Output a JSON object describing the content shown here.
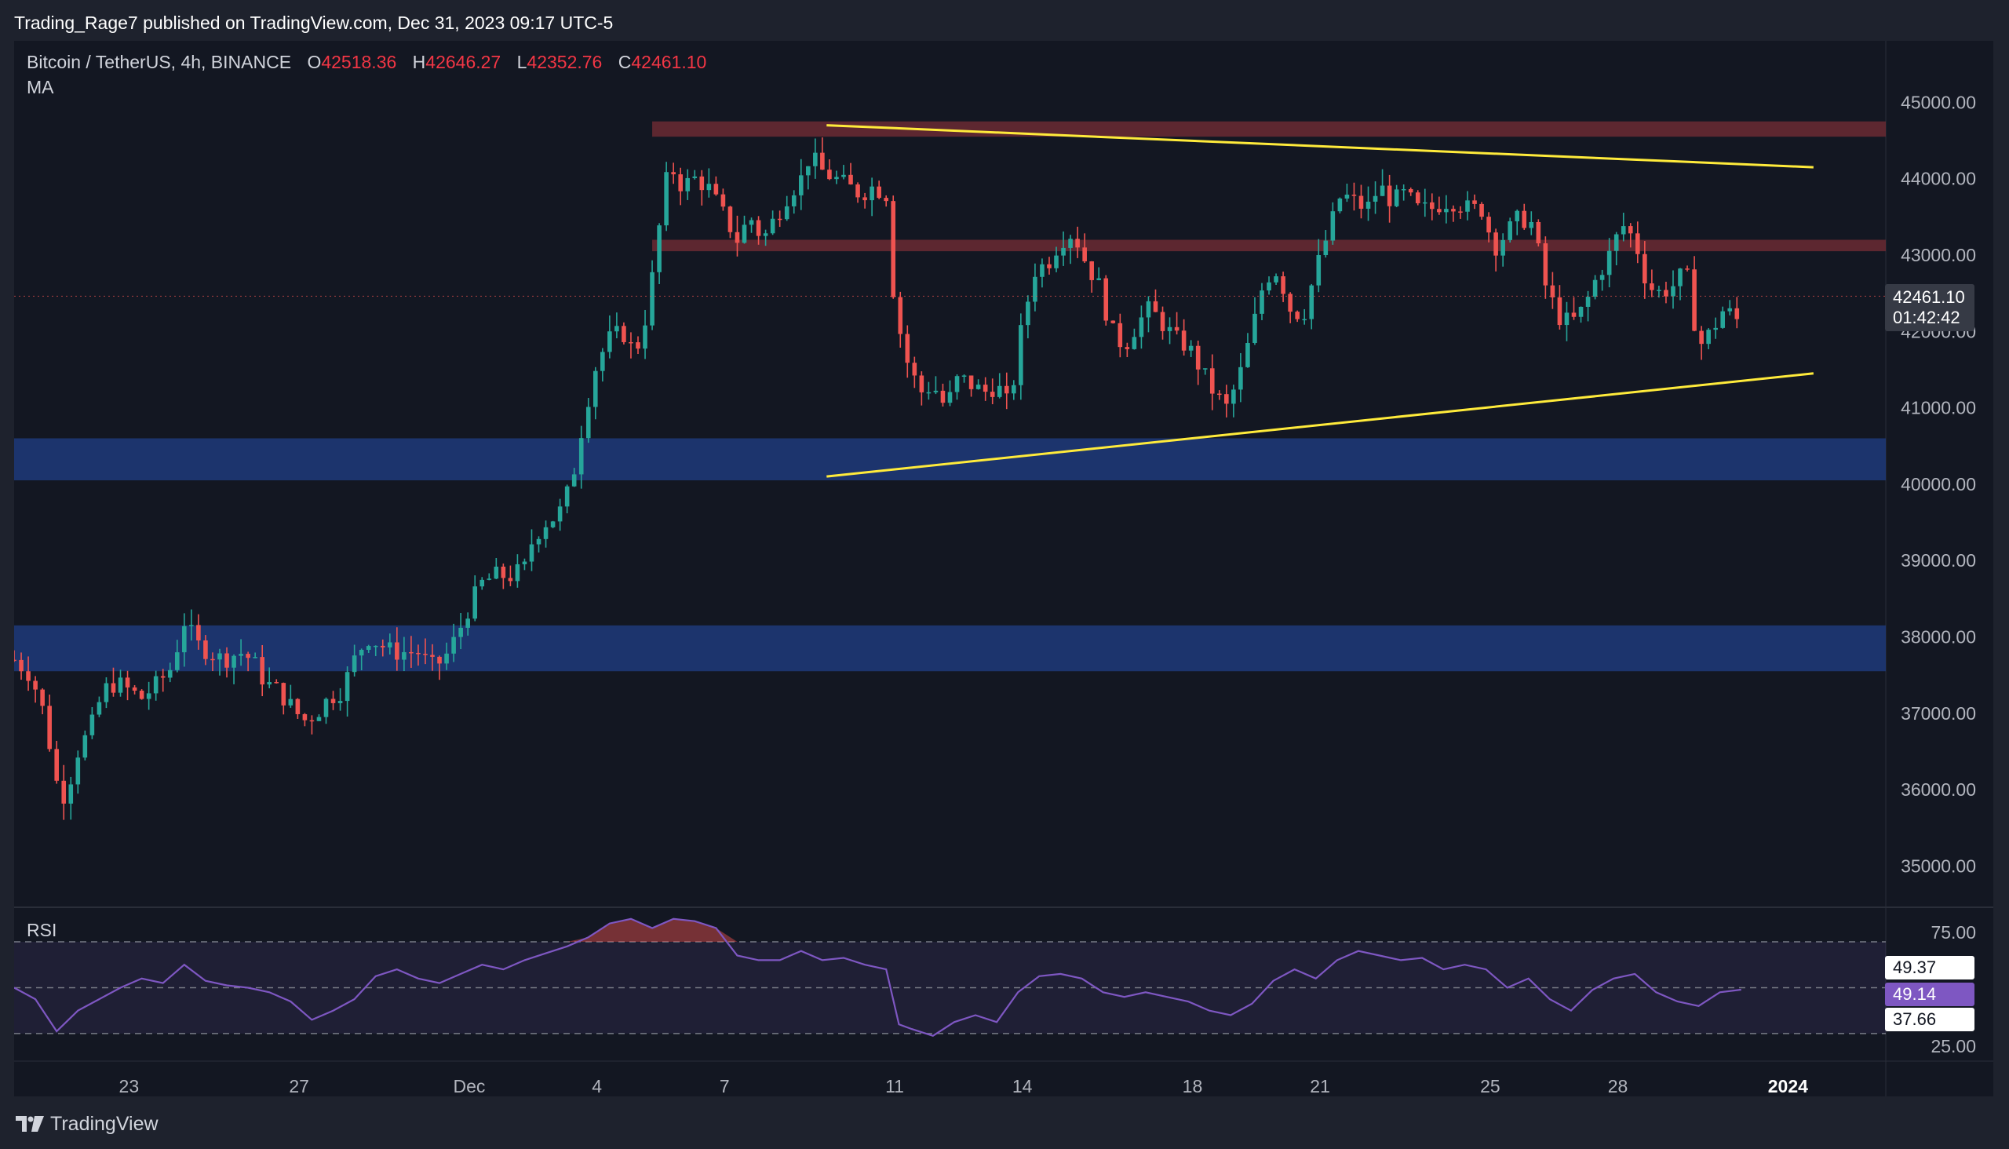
{
  "header": {
    "text": "Trading_Rage7 published on TradingView.com, Dec 31, 2023 09:17 UTC-5"
  },
  "legend": {
    "symbol": "Bitcoin / TetherUS, 4h, BINANCE",
    "o_label": "O",
    "o_value": "42518.36",
    "h_label": "H",
    "h_value": "42646.27",
    "l_label": "L",
    "l_value": "42352.76",
    "c_label": "C",
    "c_value": "42461.10",
    "ma_label": "MA"
  },
  "rsi": {
    "label": "RSI",
    "badge_a": "49.37",
    "badge_b": "49.14",
    "badge_c": "37.66"
  },
  "price_badge": {
    "price": "42461.10",
    "countdown": "01:42:42"
  },
  "footer": {
    "brand": "TradingView"
  },
  "colors": {
    "background": "#131722",
    "frame": "#1e222d",
    "up": "#26a69a",
    "down": "#ef5350",
    "trendline": "#ffeb3b",
    "support_zone": "#1e3a7a",
    "resistance_zone": "#6b2a33",
    "rsi_line": "#7e57c2"
  },
  "chart_data": {
    "type": "candlestick",
    "instrument": "Bitcoin / TetherUS",
    "timeframe": "4h",
    "exchange": "BINANCE",
    "y_ticks": [
      "45000.00",
      "44000.00",
      "43000.00",
      "42000.00",
      "41000.00",
      "40000.00",
      "39000.00",
      "38000.00",
      "37000.00",
      "36000.00",
      "35000.00"
    ],
    "ylim": [
      34500,
      45600
    ],
    "x_ticks": [
      "23",
      "27",
      "Dec",
      "4",
      "7",
      "11",
      "14",
      "18",
      "21",
      "25",
      "28",
      "2024"
    ],
    "x_tick_days": [
      -8,
      -4,
      0,
      3,
      6,
      10,
      13,
      17,
      20,
      24,
      27,
      31
    ],
    "xlim_days": [
      -10.7,
      33.3
    ],
    "last_day": 29.9,
    "price_path": [
      [
        -10.7,
        37700
      ],
      [
        -10.3,
        37500
      ],
      [
        -10.0,
        37000
      ],
      [
        -9.7,
        36100
      ],
      [
        -9.5,
        35900
      ],
      [
        -9.2,
        36500
      ],
      [
        -8.9,
        36800
      ],
      [
        -8.6,
        37300
      ],
      [
        -8.3,
        37400
      ],
      [
        -8.0,
        37300
      ],
      [
        -7.7,
        37200
      ],
      [
        -7.3,
        37400
      ],
      [
        -7.0,
        37600
      ],
      [
        -6.7,
        38200
      ],
      [
        -6.4,
        37900
      ],
      [
        -6.1,
        37800
      ],
      [
        -5.8,
        37700
      ],
      [
        -5.4,
        37800
      ],
      [
        -5.1,
        37700
      ],
      [
        -4.8,
        37400
      ],
      [
        -4.5,
        37300
      ],
      [
        -4.2,
        37100
      ],
      [
        -3.9,
        36900
      ],
      [
        -3.6,
        37000
      ],
      [
        -3.3,
        37200
      ],
      [
        -3.0,
        37300
      ],
      [
        -2.7,
        37700
      ],
      [
        -2.4,
        38000
      ],
      [
        -2.1,
        37900
      ],
      [
        -1.8,
        37800
      ],
      [
        -1.5,
        37800
      ],
      [
        -1.2,
        37800
      ],
      [
        -0.9,
        37600
      ],
      [
        -0.6,
        37700
      ],
      [
        -0.3,
        38000
      ],
      [
        0.0,
        38400
      ],
      [
        0.3,
        38700
      ],
      [
        0.6,
        38800
      ],
      [
        1.0,
        38800
      ],
      [
        1.3,
        38900
      ],
      [
        1.5,
        39300
      ],
      [
        1.8,
        39500
      ],
      [
        2.1,
        39600
      ],
      [
        2.4,
        40000
      ],
      [
        2.7,
        40900
      ],
      [
        3.0,
        41600
      ],
      [
        3.3,
        41900
      ],
      [
        3.6,
        42000
      ],
      [
        3.9,
        41700
      ],
      [
        4.2,
        42300
      ],
      [
        4.5,
        43500
      ],
      [
        4.7,
        44200
      ],
      [
        5.0,
        43900
      ],
      [
        5.3,
        44000
      ],
      [
        5.6,
        43900
      ],
      [
        6.0,
        43500
      ],
      [
        6.3,
        43200
      ],
      [
        6.6,
        43500
      ],
      [
        6.9,
        43200
      ],
      [
        7.2,
        43500
      ],
      [
        7.5,
        43800
      ],
      [
        7.8,
        44000
      ],
      [
        8.0,
        44300
      ],
      [
        8.3,
        44100
      ],
      [
        8.6,
        44000
      ],
      [
        8.9,
        43900
      ],
      [
        9.2,
        43800
      ],
      [
        9.5,
        43900
      ],
      [
        9.8,
        43800
      ],
      [
        10.0,
        42300
      ],
      [
        10.3,
        41600
      ],
      [
        10.6,
        41200
      ],
      [
        10.9,
        41300
      ],
      [
        11.2,
        41000
      ],
      [
        11.5,
        41400
      ],
      [
        11.8,
        41300
      ],
      [
        12.1,
        41200
      ],
      [
        12.4,
        41300
      ],
      [
        12.7,
        41000
      ],
      [
        13.0,
        42100
      ],
      [
        13.3,
        42800
      ],
      [
        13.6,
        42900
      ],
      [
        13.9,
        43200
      ],
      [
        14.2,
        43300
      ],
      [
        14.5,
        42900
      ],
      [
        14.8,
        42600
      ],
      [
        15.1,
        42000
      ],
      [
        15.4,
        41800
      ],
      [
        15.7,
        42100
      ],
      [
        16.0,
        42300
      ],
      [
        16.3,
        42100
      ],
      [
        16.6,
        41900
      ],
      [
        16.9,
        41800
      ],
      [
        17.2,
        41500
      ],
      [
        17.5,
        41200
      ],
      [
        17.8,
        41000
      ],
      [
        18.1,
        41400
      ],
      [
        18.4,
        42000
      ],
      [
        18.7,
        42700
      ],
      [
        19.0,
        42800
      ],
      [
        19.3,
        42300
      ],
      [
        19.6,
        42200
      ],
      [
        19.9,
        42800
      ],
      [
        20.2,
        43300
      ],
      [
        20.5,
        43800
      ],
      [
        20.8,
        43700
      ],
      [
        21.1,
        43600
      ],
      [
        21.4,
        43900
      ],
      [
        21.7,
        43700
      ],
      [
        22.0,
        43800
      ],
      [
        22.3,
        43600
      ],
      [
        22.6,
        43600
      ],
      [
        22.9,
        43700
      ],
      [
        23.2,
        43700
      ],
      [
        23.5,
        43600
      ],
      [
        23.8,
        43600
      ],
      [
        24.1,
        43100
      ],
      [
        24.4,
        43300
      ],
      [
        24.7,
        43500
      ],
      [
        25.0,
        43400
      ],
      [
        25.3,
        42600
      ],
      [
        25.6,
        42200
      ],
      [
        25.9,
        42100
      ],
      [
        26.2,
        42300
      ],
      [
        26.5,
        42700
      ],
      [
        26.8,
        43000
      ],
      [
        27.1,
        43400
      ],
      [
        27.4,
        43200
      ],
      [
        27.7,
        42600
      ],
      [
        28.0,
        42500
      ],
      [
        28.3,
        42600
      ],
      [
        28.6,
        42800
      ],
      [
        28.9,
        41800
      ],
      [
        29.2,
        42000
      ],
      [
        29.5,
        42300
      ],
      [
        29.8,
        42150
      ],
      [
        29.9,
        42461
      ]
    ],
    "rsi_path": [
      [
        -10.7,
        50
      ],
      [
        -10.2,
        45
      ],
      [
        -9.7,
        31
      ],
      [
        -9.2,
        40
      ],
      [
        -8.7,
        45
      ],
      [
        -8.2,
        50
      ],
      [
        -7.7,
        54
      ],
      [
        -7.2,
        52
      ],
      [
        -6.7,
        60
      ],
      [
        -6.2,
        53
      ],
      [
        -5.7,
        51
      ],
      [
        -5.2,
        50
      ],
      [
        -4.7,
        48
      ],
      [
        -4.2,
        44
      ],
      [
        -3.7,
        36
      ],
      [
        -3.2,
        40
      ],
      [
        -2.7,
        45
      ],
      [
        -2.2,
        55
      ],
      [
        -1.7,
        58
      ],
      [
        -1.2,
        54
      ],
      [
        -0.7,
        52
      ],
      [
        -0.2,
        56
      ],
      [
        0.3,
        60
      ],
      [
        0.8,
        58
      ],
      [
        1.3,
        62
      ],
      [
        1.8,
        65
      ],
      [
        2.3,
        68
      ],
      [
        2.8,
        72
      ],
      [
        3.3,
        78
      ],
      [
        3.8,
        80
      ],
      [
        4.3,
        76
      ],
      [
        4.8,
        80
      ],
      [
        5.3,
        79
      ],
      [
        5.8,
        76
      ],
      [
        6.3,
        64
      ],
      [
        6.8,
        62
      ],
      [
        7.3,
        62
      ],
      [
        7.8,
        66
      ],
      [
        8.3,
        62
      ],
      [
        8.8,
        63
      ],
      [
        9.3,
        60
      ],
      [
        9.8,
        58
      ],
      [
        10.1,
        34
      ],
      [
        10.4,
        32
      ],
      [
        10.9,
        29
      ],
      [
        11.4,
        35
      ],
      [
        11.9,
        38
      ],
      [
        12.4,
        35
      ],
      [
        12.9,
        48
      ],
      [
        13.4,
        55
      ],
      [
        13.9,
        56
      ],
      [
        14.4,
        54
      ],
      [
        14.9,
        48
      ],
      [
        15.4,
        46
      ],
      [
        15.9,
        48
      ],
      [
        16.4,
        46
      ],
      [
        16.9,
        44
      ],
      [
        17.4,
        40
      ],
      [
        17.9,
        38
      ],
      [
        18.4,
        43
      ],
      [
        18.9,
        53
      ],
      [
        19.4,
        58
      ],
      [
        19.9,
        54
      ],
      [
        20.4,
        62
      ],
      [
        20.9,
        66
      ],
      [
        21.4,
        64
      ],
      [
        21.9,
        62
      ],
      [
        22.4,
        63
      ],
      [
        22.9,
        58
      ],
      [
        23.4,
        60
      ],
      [
        23.9,
        58
      ],
      [
        24.4,
        50
      ],
      [
        24.9,
        54
      ],
      [
        25.4,
        45
      ],
      [
        25.9,
        40
      ],
      [
        26.4,
        49
      ],
      [
        26.9,
        54
      ],
      [
        27.4,
        56
      ],
      [
        27.9,
        48
      ],
      [
        28.4,
        44
      ],
      [
        28.9,
        42
      ],
      [
        29.4,
        48
      ],
      [
        29.9,
        49.14
      ]
    ],
    "rsi_ylim": [
      18,
      83
    ],
    "rsi_ticks": [
      "75.00",
      "25.00"
    ],
    "rsi_bands": [
      70,
      30
    ],
    "resistance_zones": [
      [
        44550,
        44750
      ],
      [
        43050,
        43200
      ]
    ],
    "support_zones": [
      [
        40050,
        40600
      ],
      [
        37550,
        38150
      ]
    ],
    "trendlines": [
      {
        "from": [
          8.4,
          44700
        ],
        "to": [
          31.6,
          44150
        ]
      },
      {
        "from": [
          8.4,
          40100
        ],
        "to": [
          31.6,
          41450
        ]
      }
    ]
  }
}
